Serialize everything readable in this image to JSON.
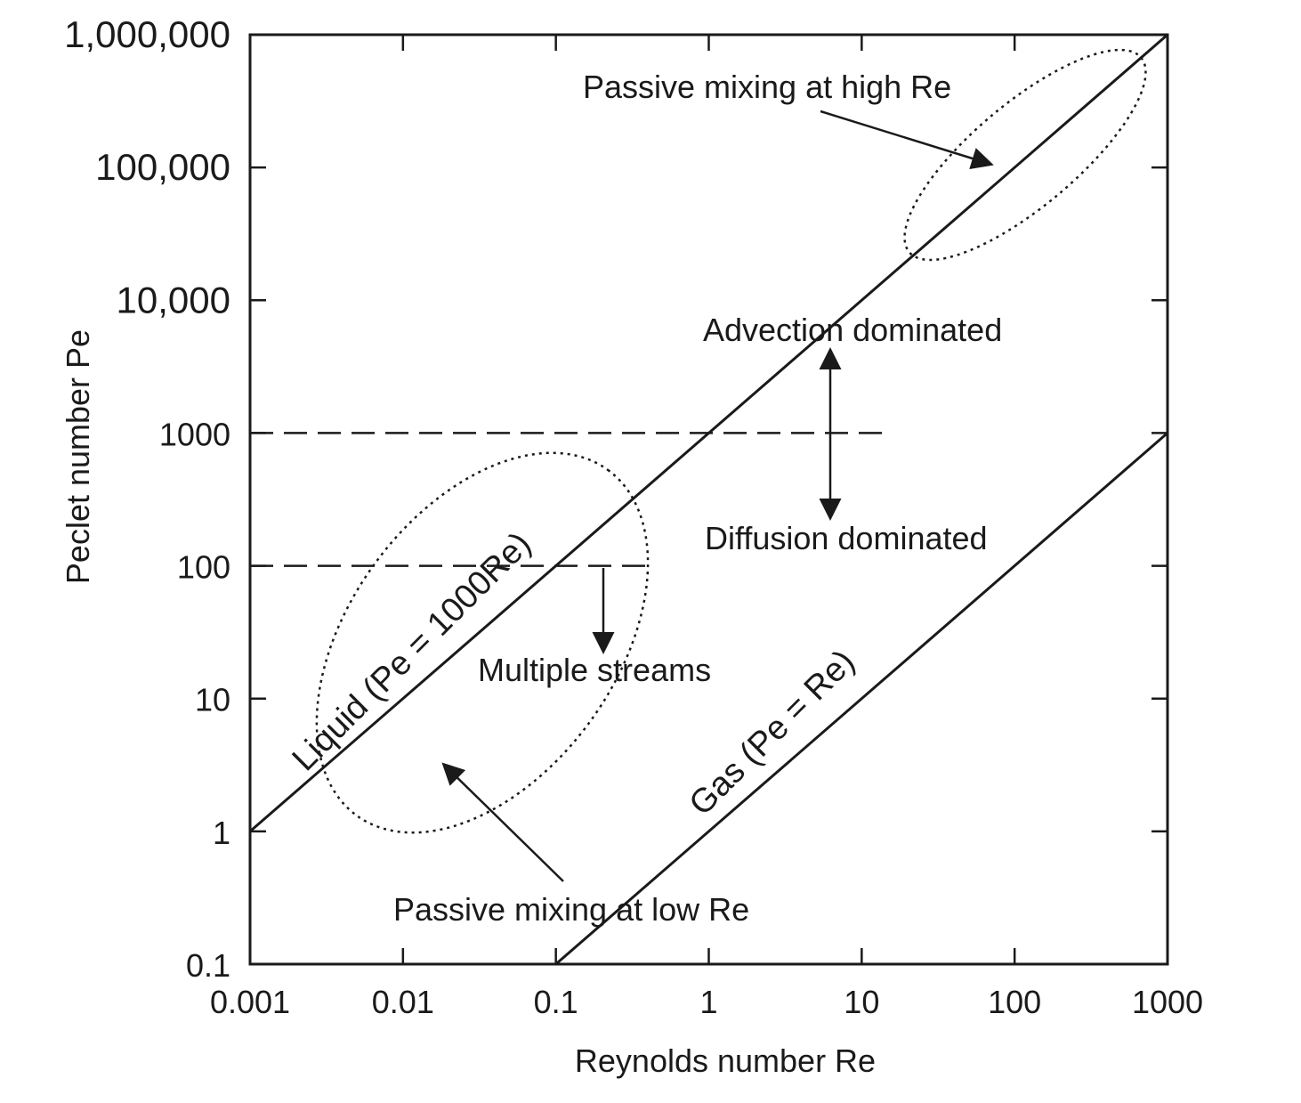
{
  "chart_data": {
    "type": "line",
    "title": "",
    "xlabel": "Reynolds number Re",
    "ylabel": "Peclet number Pe",
    "xscale": "log",
    "yscale": "log",
    "xlim": [
      0.001,
      1000
    ],
    "ylim": [
      0.1,
      1000000
    ],
    "grid": false,
    "x_ticks": [
      {
        "value": 0.001,
        "label": "0.001"
      },
      {
        "value": 0.01,
        "label": "0.01"
      },
      {
        "value": 0.1,
        "label": "0.1"
      },
      {
        "value": 1,
        "label": "1"
      },
      {
        "value": 10,
        "label": "10"
      },
      {
        "value": 100,
        "label": "100"
      },
      {
        "value": 1000,
        "label": "1000"
      }
    ],
    "y_ticks": [
      {
        "value": 0.1,
        "label": "0.1"
      },
      {
        "value": 1,
        "label": "1"
      },
      {
        "value": 10,
        "label": "10"
      },
      {
        "value": 100,
        "label": "100"
      },
      {
        "value": 1000,
        "label": "1000"
      },
      {
        "value": 10000,
        "label": "10,000"
      },
      {
        "value": 100000,
        "label": "100,000"
      },
      {
        "value": 1000000,
        "label": "1,000,000"
      }
    ],
    "series": [
      {
        "label": "Liquid (Pe = 1000Re)",
        "style": "solid",
        "x": [
          0.001,
          1000
        ],
        "y": [
          1,
          1000000
        ]
      },
      {
        "label": "Gas (Pe = Re)",
        "style": "solid",
        "x": [
          0.1,
          1000
        ],
        "y": [
          0.1,
          1000
        ]
      }
    ],
    "reference_lines": [
      {
        "style": "dashed",
        "y": 1000,
        "x": [
          0.001,
          15
        ]
      },
      {
        "style": "dashed",
        "y": 100,
        "x": [
          0.001,
          0.4
        ]
      }
    ],
    "annotations": [
      {
        "text": "Passive mixing at high Re",
        "x": 3,
        "y": 300000
      },
      {
        "text": "Advection dominated",
        "x": 1.5,
        "y": 5000
      },
      {
        "text": "Diffusion dominated",
        "x": 1.5,
        "y": 130
      },
      {
        "text": "Multiple streams",
        "x": 0.06,
        "y": 13
      },
      {
        "text": "Passive mixing at low Re",
        "x": 0.008,
        "y": 0.4
      }
    ],
    "regions": [
      {
        "shape": "ellipse",
        "style": "dotted",
        "center": [
          0.03,
          30
        ],
        "encloses": "passive-mixing-low-re"
      },
      {
        "shape": "ellipse",
        "style": "dotted",
        "center": [
          100,
          100000
        ],
        "encloses": "passive-mixing-high-re"
      }
    ],
    "arrows": [
      {
        "from": [
          40,
          300000
        ],
        "to": [
          100,
          150000
        ]
      },
      {
        "from": [
          0.1,
          0.3
        ],
        "to": [
          0.02,
          3
        ]
      },
      {
        "from": [
          0.2,
          100
        ],
        "to": [
          0.2,
          15
        ]
      },
      {
        "from": [
          5,
          7000
        ],
        "to": [
          5,
          200
        ],
        "double": true
      }
    ]
  }
}
